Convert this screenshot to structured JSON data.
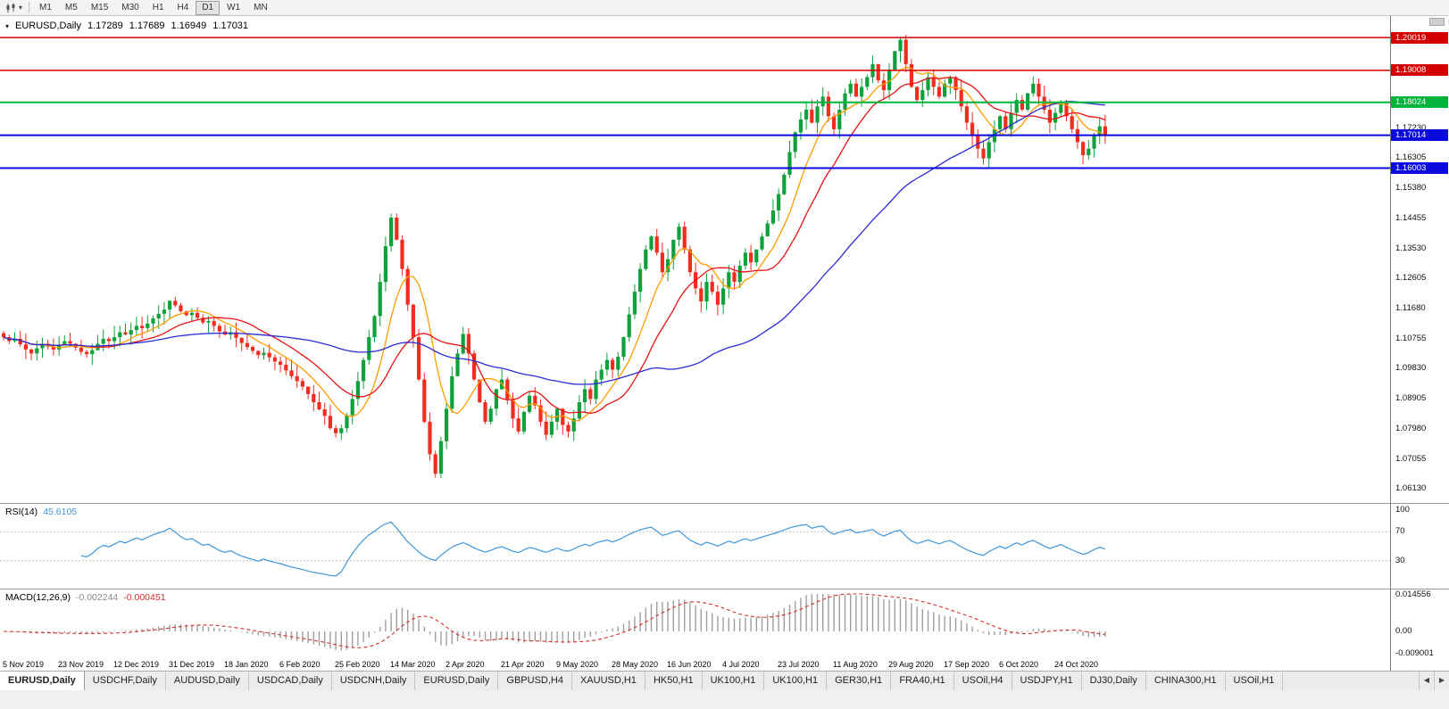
{
  "icons": {
    "dropdown": "▾",
    "scroll_left": "◀",
    "scroll_right": "▶"
  },
  "toolbar": {
    "periods": [
      "M1",
      "M5",
      "M15",
      "M30",
      "H1",
      "H4",
      "D1",
      "W1",
      "MN"
    ],
    "active_period": "D1"
  },
  "chart": {
    "info": {
      "symbol": "EURUSD,Daily",
      "open": "1.17289",
      "high": "1.17689",
      "low": "1.16949",
      "close": "1.17031"
    },
    "hlines": [
      {
        "value": 1.20019,
        "label": "1.20019",
        "color": "#d40000"
      },
      {
        "value": 1.19008,
        "label": "1.19008",
        "color": "#d40000"
      },
      {
        "value": 1.18024,
        "label": "1.18024",
        "color": "#00b43c"
      },
      {
        "value": 1.17014,
        "label": "1.17014",
        "color": "#0a0adf"
      },
      {
        "value": 1.16003,
        "label": "1.16003",
        "color": "#0a0adf"
      }
    ],
    "y_ticks": [
      "1.17230",
      "1.16305",
      "1.15380",
      "1.14455",
      "1.13530",
      "1.12605",
      "1.11680",
      "1.10755",
      "1.09830",
      "1.08905",
      "1.07980",
      "1.07055",
      "1.06130"
    ]
  },
  "chart_data": {
    "type": "candlestick",
    "symbol": "EURUSD",
    "timeframe": "Daily",
    "ylim": [
      1.057,
      1.2068
    ],
    "x_labels": [
      "5 Nov 2019",
      "23 Nov 2019",
      "12 Dec 2019",
      "31 Dec 2019",
      "18 Jan 2020",
      "6 Feb 2020",
      "25 Feb 2020",
      "14 Mar 2020",
      "2 Apr 2020",
      "21 Apr 2020",
      "9 May 2020",
      "28 May 2020",
      "16 Jun 2020",
      "4 Jul 2020",
      "23 Jul 2020",
      "11 Aug 2020",
      "29 Aug 2020",
      "17 Sep 2020",
      "6 Oct 2020",
      "24 Oct 2020"
    ],
    "label_interval": 10,
    "up_color": "#0fa13c",
    "down_color": "#f22c1e",
    "moving_averages": [
      {
        "period": 8,
        "color": "#ff9c00"
      },
      {
        "period": 16,
        "color": "#e81313"
      },
      {
        "period": 50,
        "color": "#2b2bd4"
      }
    ],
    "closes": [
      1.108,
      1.1068,
      1.1075,
      1.1058,
      1.1042,
      1.103,
      1.1046,
      1.106,
      1.1051,
      1.1042,
      1.1055,
      1.1068,
      1.106,
      1.1048,
      1.1035,
      1.1028,
      1.104,
      1.106,
      1.1075,
      1.1068,
      1.108,
      1.1095,
      1.1088,
      1.1102,
      1.1115,
      1.1108,
      1.1122,
      1.1138,
      1.1152,
      1.1165,
      1.1192,
      1.1178,
      1.116,
      1.1148,
      1.1155,
      1.114,
      1.1125,
      1.113,
      1.1115,
      1.1098,
      1.1088,
      1.1095,
      1.1078,
      1.1062,
      1.105,
      1.1038,
      1.1025,
      1.1032,
      1.1018,
      1.1005,
      1.0995,
      1.0978,
      1.096,
      1.0945,
      1.0928,
      1.0905,
      1.088,
      1.0858,
      1.0838,
      1.08,
      1.0785,
      1.08,
      1.084,
      1.089,
      1.0945,
      1.101,
      1.108,
      1.1145,
      1.125,
      1.136,
      1.1448,
      1.138,
      1.129,
      1.118,
      1.108,
      1.095,
      1.082,
      1.072,
      1.066,
      1.076,
      1.086,
      1.096,
      1.103,
      1.109,
      1.103,
      1.095,
      1.088,
      1.082,
      1.086,
      1.092,
      1.095,
      1.089,
      1.083,
      1.079,
      1.085,
      1.09,
      1.087,
      1.082,
      1.078,
      1.082,
      1.086,
      1.081,
      1.079,
      1.083,
      1.088,
      1.092,
      1.089,
      1.095,
      1.098,
      1.101,
      1.098,
      1.102,
      1.108,
      1.115,
      1.122,
      1.129,
      1.135,
      1.139,
      1.134,
      1.128,
      1.132,
      1.138,
      1.142,
      1.135,
      1.128,
      1.123,
      1.119,
      1.125,
      1.122,
      1.118,
      1.123,
      1.128,
      1.125,
      1.13,
      1.134,
      1.131,
      1.135,
      1.139,
      1.143,
      1.147,
      1.152,
      1.158,
      1.165,
      1.171,
      1.175,
      1.178,
      1.174,
      1.179,
      1.182,
      1.176,
      1.172,
      1.178,
      1.183,
      1.186,
      1.182,
      1.185,
      1.188,
      1.192,
      1.187,
      1.184,
      1.19,
      1.196,
      1.1995,
      1.192,
      1.185,
      1.181,
      1.184,
      1.188,
      1.185,
      1.182,
      1.186,
      1.188,
      1.184,
      1.179,
      1.174,
      1.17,
      1.166,
      1.163,
      1.168,
      1.172,
      1.176,
      1.172,
      1.177,
      1.181,
      1.178,
      1.183,
      1.186,
      1.182,
      1.178,
      1.174,
      1.177,
      1.18,
      1.176,
      1.172,
      1.168,
      1.164,
      1.166,
      1.17,
      1.1729,
      1.1703
    ]
  },
  "rsi": {
    "name": "RSI(14)",
    "value": "45.6105",
    "period": 14,
    "color": "#3f96d8",
    "levels": [
      70,
      30
    ],
    "axis_labels": [
      "100",
      "70",
      "30"
    ],
    "ylim": [
      0,
      100
    ]
  },
  "macd": {
    "name": "MACD(12,26,9)",
    "value_macd": "-0.002244",
    "value_signal": "-0.000451",
    "fast": 12,
    "slow": 26,
    "signal": 9,
    "hist_color": "#9f9f9f",
    "signal_color": "#d42f2f",
    "axis_labels": [
      "0.014556",
      "0.00",
      "-0.009001"
    ],
    "ylim": [
      -0.009001,
      0.014556
    ]
  },
  "tabbar": {
    "tabs": [
      {
        "label": "EURUSD,Daily",
        "active": true
      },
      {
        "label": "USDCHF,Daily"
      },
      {
        "label": "AUDUSD,Daily"
      },
      {
        "label": "USDCAD,Daily"
      },
      {
        "label": "USDCNH,Daily"
      },
      {
        "label": "EURUSD,Daily"
      },
      {
        "label": "GBPUSD,H4"
      },
      {
        "label": "XAUUSD,H1"
      },
      {
        "label": "HK50,H1"
      },
      {
        "label": "UK100,H1"
      },
      {
        "label": "UK100,H1"
      },
      {
        "label": "GER30,H1"
      },
      {
        "label": "FRA40,H1"
      },
      {
        "label": "USOil,H4"
      },
      {
        "label": "USDJPY,H1"
      },
      {
        "label": "DJ30,Daily"
      },
      {
        "label": "CHINA300,H1"
      },
      {
        "label": "USOil,H1"
      }
    ]
  }
}
